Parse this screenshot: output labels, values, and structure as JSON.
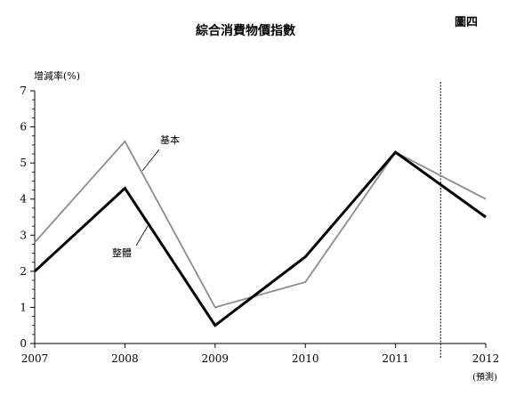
{
  "figure_label": "圖四",
  "chart_data": {
    "type": "line",
    "title": "綜合消費物價指數",
    "ylabel": "增減率(%)",
    "xlabel": "",
    "x": [
      2007,
      2008,
      2009,
      2010,
      2011,
      2012
    ],
    "x_tick_labels": [
      "2007",
      "2008",
      "2009",
      "2010",
      "2011",
      "2012"
    ],
    "forecast_note": "(預測)",
    "ylim": [
      0,
      7
    ],
    "y_ticks": [
      0,
      1,
      2,
      3,
      4,
      5,
      6,
      7
    ],
    "grid": false,
    "forecast_divider_x": 2011.5,
    "series": [
      {
        "name": "基本",
        "values": [
          2.8,
          5.6,
          1.0,
          1.7,
          5.3,
          4.0
        ],
        "color": "#8c8c8c"
      },
      {
        "name": "整體",
        "values": [
          2.0,
          4.3,
          0.5,
          2.4,
          5.3,
          3.5
        ],
        "color": "#000000"
      }
    ]
  }
}
